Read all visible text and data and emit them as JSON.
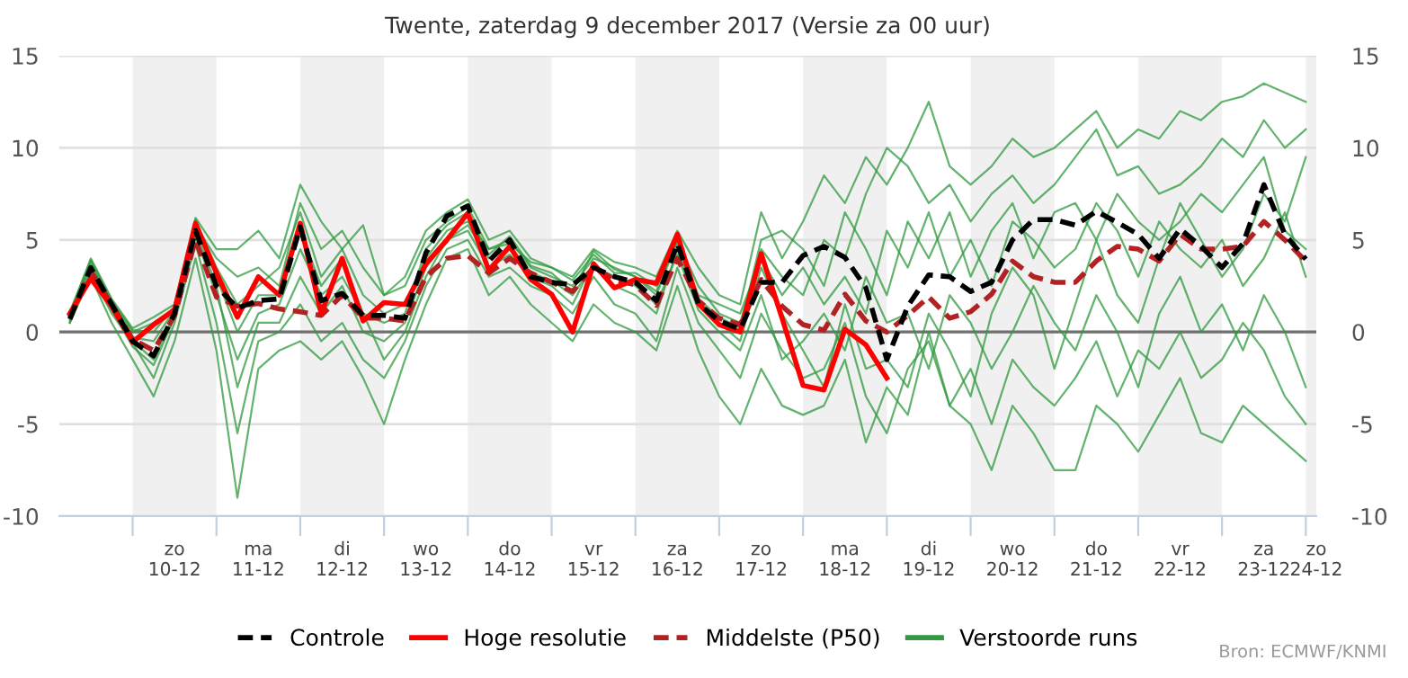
{
  "chart_data": {
    "type": "line",
    "title": "Twente, zaterdag 9 december 2017 (Versie za 00 uur)",
    "annotations": [
      "Bron: ECMWF/KNMI"
    ],
    "x": [
      "2017-12-09T06:00",
      "2017-12-09T12:00",
      "2017-12-09T18:00",
      "2017-12-10T00:00",
      "2017-12-10T06:00",
      "2017-12-10T12:00",
      "2017-12-10T18:00",
      "2017-12-11T00:00",
      "2017-12-11T06:00",
      "2017-12-11T12:00",
      "2017-12-11T18:00",
      "2017-12-12T00:00",
      "2017-12-12T06:00",
      "2017-12-12T12:00",
      "2017-12-12T18:00",
      "2017-12-13T00:00",
      "2017-12-13T06:00",
      "2017-12-13T12:00",
      "2017-12-13T18:00",
      "2017-12-14T00:00",
      "2017-12-14T06:00",
      "2017-12-14T12:00",
      "2017-12-14T18:00",
      "2017-12-15T00:00",
      "2017-12-15T06:00",
      "2017-12-15T12:00",
      "2017-12-15T18:00",
      "2017-12-16T00:00",
      "2017-12-16T06:00",
      "2017-12-16T12:00",
      "2017-12-16T18:00",
      "2017-12-17T00:00",
      "2017-12-17T06:00",
      "2017-12-17T12:00",
      "2017-12-17T18:00",
      "2017-12-18T00:00",
      "2017-12-18T06:00",
      "2017-12-18T12:00",
      "2017-12-18T18:00",
      "2017-12-19T00:00",
      "2017-12-19T06:00",
      "2017-12-19T12:00",
      "2017-12-19T18:00",
      "2017-12-20T00:00",
      "2017-12-20T06:00",
      "2017-12-20T12:00",
      "2017-12-20T18:00",
      "2017-12-21T00:00",
      "2017-12-21T06:00",
      "2017-12-21T12:00",
      "2017-12-21T18:00",
      "2017-12-22T00:00",
      "2017-12-22T06:00",
      "2017-12-22T12:00",
      "2017-12-22T18:00",
      "2017-12-23T00:00",
      "2017-12-23T06:00",
      "2017-12-23T12:00",
      "2017-12-23T18:00",
      "2017-12-24T00:00"
    ],
    "xlim": [
      "2017-12-09T03:00",
      "2017-12-24T03:00"
    ],
    "xticks": [
      {
        "value": "2017-12-10",
        "label": null
      },
      {
        "value": "2017-12-11",
        "label": null
      },
      {
        "value": "2017-12-12",
        "label": null
      },
      {
        "value": "2017-12-13",
        "label": null
      },
      {
        "value": "2017-12-14",
        "label": null
      },
      {
        "value": "2017-12-15",
        "label": null
      },
      {
        "value": "2017-12-16",
        "label": null
      },
      {
        "value": "2017-12-17",
        "label": null
      },
      {
        "value": "2017-12-18",
        "label": null
      },
      {
        "value": "2017-12-19",
        "label": null
      },
      {
        "value": "2017-12-20",
        "label": null
      },
      {
        "value": "2017-12-21",
        "label": null
      },
      {
        "value": "2017-12-22",
        "label": null
      },
      {
        "value": "2017-12-23",
        "label": null
      },
      {
        "value": "2017-12-24",
        "label": null
      },
      {
        "value": "2017-12-10T12:00",
        "label": "zo\n10-12"
      },
      {
        "value": "2017-12-11T12:00",
        "label": "ma\n11-12"
      },
      {
        "value": "2017-12-12T12:00",
        "label": "di\n12-12"
      },
      {
        "value": "2017-12-13T12:00",
        "label": "wo\n13-12"
      },
      {
        "value": "2017-12-14T12:00",
        "label": "do\n14-12"
      },
      {
        "value": "2017-12-15T12:00",
        "label": "vr\n15-12"
      },
      {
        "value": "2017-12-16T12:00",
        "label": "za\n16-12"
      },
      {
        "value": "2017-12-17T12:00",
        "label": "zo\n17-12"
      },
      {
        "value": "2017-12-18T12:00",
        "label": "ma\n18-12"
      },
      {
        "value": "2017-12-19T12:00",
        "label": "di\n19-12"
      },
      {
        "value": "2017-12-20T12:00",
        "label": "wo\n20-12"
      },
      {
        "value": "2017-12-21T12:00",
        "label": "do\n21-12"
      },
      {
        "value": "2017-12-22T12:00",
        "label": "vr\n22-12"
      },
      {
        "value": "2017-12-23T12:00",
        "label": "za\n23-12"
      },
      {
        "value": "2017-12-24T03:00",
        "label": "zo\n24-12"
      }
    ],
    "ylim": [
      -10,
      15
    ],
    "yticks": [
      -10,
      -5,
      0,
      5,
      10,
      15
    ],
    "y2lim": [
      -10,
      15
    ],
    "y2ticks": [
      -10,
      -5,
      0,
      5,
      10,
      15
    ],
    "grid": "y",
    "legend": "bottom",
    "ref_lines": [
      {
        "axis": "y",
        "value": 0,
        "color": "#707070"
      }
    ],
    "bands": [
      {
        "axis": "x",
        "from": "2017-12-10",
        "to": "2017-12-11",
        "color": "#f0f0f0"
      },
      {
        "axis": "x",
        "from": "2017-12-12",
        "to": "2017-12-13",
        "color": "#f0f0f0"
      },
      {
        "axis": "x",
        "from": "2017-12-14",
        "to": "2017-12-15",
        "color": "#f0f0f0"
      },
      {
        "axis": "x",
        "from": "2017-12-16",
        "to": "2017-12-17",
        "color": "#f0f0f0"
      },
      {
        "axis": "x",
        "from": "2017-12-18",
        "to": "2017-12-19",
        "color": "#f0f0f0"
      },
      {
        "axis": "x",
        "from": "2017-12-20",
        "to": "2017-12-21",
        "color": "#f0f0f0"
      },
      {
        "axis": "x",
        "from": "2017-12-22",
        "to": "2017-12-23",
        "color": "#f0f0f0"
      },
      {
        "axis": "x",
        "from": "2017-12-24",
        "to": "2017-12-24T03:00",
        "color": "#f0f0f0"
      }
    ],
    "series": [
      {
        "name": "Controle",
        "color": "#000000",
        "line_style": "dashed",
        "values": [
          0.7,
          3.5,
          1.5,
          -0.5,
          -1.3,
          1.0,
          5.5,
          2.5,
          1.3,
          1.7,
          1.8,
          5.7,
          1.7,
          2.1,
          0.9,
          0.9,
          0.75,
          4.3,
          6.3,
          6.85,
          3.85,
          5.0,
          3.0,
          2.7,
          2.55,
          3.5,
          3.0,
          2.7,
          1.7,
          4.8,
          1.55,
          0.6,
          0.15,
          2.7,
          2.7,
          4.15,
          4.65,
          4.05,
          2.4,
          -1.5,
          1.4,
          3.1,
          3.0,
          2.2,
          2.7,
          5.0,
          6.1,
          6.1,
          5.8,
          6.55,
          5.95,
          5.3,
          4.0,
          5.6,
          4.65,
          3.5,
          4.8,
          8.0,
          5.3,
          3.95
        ]
      },
      {
        "name": "Hoge resolutie",
        "color": "#ff0000",
        "line_style": "solid",
        "values": [
          1.0,
          2.9,
          1.4,
          -0.55,
          0.4,
          1.2,
          5.9,
          3.2,
          0.8,
          3.0,
          2.0,
          5.9,
          1.0,
          4.0,
          0.6,
          1.6,
          1.5,
          3.7,
          5.0,
          6.45,
          3.35,
          4.65,
          2.85,
          2.05,
          0.0,
          3.7,
          2.4,
          2.85,
          2.65,
          5.3,
          1.55,
          0.4,
          0.0,
          4.25,
          0.75,
          -2.9,
          -3.15,
          0.15,
          -0.7,
          -2.5,
          null,
          null,
          null,
          null,
          null,
          null,
          null,
          null,
          null,
          null,
          null,
          null,
          null,
          null,
          null,
          null,
          null,
          null,
          null,
          null
        ]
      },
      {
        "name": "Middelste (P50)",
        "color": "#b22222",
        "line_style": "dashed",
        "values": [
          0.8,
          3.3,
          1.5,
          -0.4,
          -1.0,
          0.9,
          5.0,
          1.9,
          1.4,
          1.55,
          1.25,
          1.1,
          0.9,
          2.0,
          0.75,
          0.75,
          0.6,
          3.0,
          4.0,
          4.15,
          3.2,
          4.0,
          3.2,
          2.7,
          2.2,
          3.5,
          2.85,
          2.55,
          1.45,
          4.0,
          1.7,
          0.75,
          0.4,
          2.85,
          1.4,
          0.4,
          0.1,
          2.05,
          0.6,
          0.0,
          0.9,
          1.9,
          0.75,
          1.1,
          2.05,
          3.85,
          3.0,
          2.7,
          2.7,
          3.85,
          4.65,
          4.5,
          3.85,
          5.3,
          4.5,
          4.5,
          4.65,
          6.0,
          5.0,
          3.85
        ]
      },
      {
        "name": "Verstoorde runs",
        "color": "#2f9a3f",
        "line_style": "solid",
        "values": [
          1.0,
          4.0,
          1.8,
          0.2,
          0.8,
          1.5,
          6.2,
          4.5,
          4.5,
          5.5,
          4.0,
          8.0,
          6.0,
          4.5,
          5.8,
          2.0,
          3.0,
          5.5,
          6.5,
          7.2,
          5.0,
          5.5,
          4.0,
          3.5,
          3.0,
          4.5,
          3.8,
          3.5,
          3.0,
          5.5,
          3.5,
          2.0,
          1.5,
          6.5,
          4.0,
          6.0,
          8.5,
          7.0,
          9.5,
          8.0,
          10.0,
          12.5,
          9.0,
          8.0,
          9.0,
          10.5,
          9.5,
          10.0,
          11.0,
          12.0,
          10.0,
          11.0,
          10.5,
          12.0,
          11.5,
          12.5,
          12.8,
          13.5,
          13.0,
          12.5
        ]
      },
      {
        "color": "#2f9a3f",
        "line_style": "solid",
        "values": [
          0.5,
          3.0,
          0.5,
          -1.5,
          -3.5,
          -0.5,
          4.0,
          -1.0,
          -9.0,
          -2.0,
          -1.0,
          -0.5,
          -1.5,
          -0.5,
          -2.5,
          -5.0,
          -1.5,
          1.5,
          4.0,
          4.5,
          2.0,
          3.0,
          1.5,
          0.5,
          -0.5,
          1.5,
          0.5,
          0.0,
          -1.0,
          2.5,
          -1.0,
          -3.5,
          -5.0,
          -2.0,
          -4.0,
          -4.5,
          -4.0,
          -1.5,
          -6.0,
          -3.0,
          -4.5,
          0.0,
          -4.0,
          -5.0,
          -7.5,
          -4.0,
          -5.5,
          -7.5,
          -7.5,
          -4.0,
          -5.0,
          -6.5,
          -4.5,
          -2.5,
          -5.5,
          -6.0,
          -4.0,
          -5.0,
          -6.0,
          -7.0
        ]
      },
      {
        "color": "#2f9a3f",
        "line_style": "solid",
        "values": [
          0.7,
          3.5,
          1.2,
          -0.8,
          -1.8,
          0.8,
          5.5,
          2.5,
          -3.0,
          0.5,
          0.5,
          3.0,
          1.0,
          2.5,
          0.0,
          -0.5,
          0.5,
          3.5,
          5.0,
          5.5,
          3.5,
          4.2,
          3.0,
          2.5,
          1.5,
          3.8,
          2.5,
          2.0,
          1.0,
          4.5,
          1.5,
          0.5,
          -0.5,
          3.5,
          1.0,
          -1.0,
          -3.0,
          1.5,
          -2.0,
          -1.5,
          -3.0,
          1.0,
          -1.0,
          -3.5,
          1.0,
          3.5,
          2.0,
          -2.0,
          1.5,
          5.0,
          2.0,
          0.5,
          4.0,
          7.0,
          5.0,
          3.0,
          4.5,
          7.5,
          6.0,
          9.5
        ]
      },
      {
        "color": "#2f9a3f",
        "line_style": "solid",
        "values": [
          0.8,
          3.8,
          1.5,
          -0.3,
          -0.5,
          1.2,
          6.0,
          3.5,
          1.5,
          2.5,
          3.5,
          6.5,
          3.0,
          4.5,
          2.0,
          1.0,
          1.5,
          4.0,
          5.5,
          6.0,
          4.5,
          5.0,
          3.5,
          3.0,
          2.5,
          4.0,
          3.5,
          3.0,
          2.0,
          5.0,
          2.5,
          1.0,
          0.5,
          4.5,
          3.0,
          2.0,
          5.0,
          4.0,
          7.5,
          10.0,
          9.0,
          7.0,
          8.0,
          6.0,
          7.5,
          8.5,
          7.0,
          8.0,
          9.5,
          11.0,
          8.5,
          9.0,
          7.5,
          8.0,
          9.0,
          10.5,
          9.5,
          11.5,
          10.0,
          11.0
        ]
      },
      {
        "color": "#2f9a3f",
        "line_style": "solid",
        "values": [
          0.6,
          3.2,
          1.0,
          -0.6,
          -2.5,
          0.5,
          4.8,
          0.5,
          -5.5,
          -0.5,
          0.0,
          1.5,
          -0.5,
          0.5,
          -1.5,
          -2.5,
          -0.5,
          2.5,
          4.5,
          5.0,
          3.0,
          3.5,
          2.5,
          2.0,
          1.0,
          3.0,
          1.5,
          1.0,
          -0.5,
          3.5,
          0.5,
          -1.0,
          -2.5,
          1.0,
          -1.0,
          -2.5,
          -2.0,
          0.5,
          -3.5,
          -5.5,
          -2.0,
          -0.5,
          -4.0,
          -2.0,
          -5.0,
          -1.5,
          -3.0,
          -4.0,
          -2.5,
          -0.5,
          -3.5,
          -1.0,
          -2.0,
          0.0,
          -2.5,
          -1.5,
          0.5,
          -1.0,
          -3.5,
          -5.0
        ]
      },
      {
        "color": "#2f9a3f",
        "line_style": "solid",
        "values": [
          0.9,
          3.6,
          1.6,
          0.0,
          0.5,
          1.3,
          5.8,
          4.0,
          3.0,
          3.5,
          2.5,
          7.0,
          4.5,
          5.5,
          3.5,
          2.0,
          2.5,
          5.0,
          6.0,
          6.8,
          4.5,
          4.8,
          3.8,
          3.5,
          2.8,
          4.2,
          3.2,
          3.2,
          2.5,
          4.8,
          2.0,
          1.5,
          1.0,
          4.0,
          2.0,
          3.5,
          1.5,
          3.0,
          1.0,
          5.5,
          3.5,
          6.5,
          3.0,
          5.0,
          2.5,
          6.0,
          5.0,
          3.5,
          4.5,
          7.0,
          5.5,
          3.0,
          6.0,
          4.5,
          3.5,
          5.0,
          2.5,
          4.0,
          6.5,
          3.0
        ]
      },
      {
        "color": "#2f9a3f",
        "line_style": "solid",
        "values": [
          0.5,
          3.3,
          1.3,
          -0.5,
          -1.5,
          1.0,
          5.2,
          2.0,
          -1.5,
          1.0,
          1.5,
          4.5,
          2.0,
          3.0,
          1.0,
          -1.5,
          0.0,
          3.0,
          5.0,
          5.8,
          4.0,
          4.5,
          3.2,
          2.8,
          2.0,
          3.6,
          3.0,
          2.5,
          1.5,
          4.2,
          1.2,
          0.0,
          -1.0,
          2.0,
          -1.5,
          -0.5,
          1.0,
          -1.0,
          3.0,
          0.5,
          1.0,
          -2.0,
          2.0,
          0.5,
          -2.0,
          0.0,
          2.5,
          0.5,
          -1.0,
          2.0,
          0.0,
          -3.0,
          1.0,
          3.0,
          0.0,
          1.5,
          -1.0,
          2.0,
          0.0,
          -3.0
        ]
      },
      {
        "color": "#2f9a3f",
        "line_style": "solid",
        "values": [
          1.1,
          3.9,
          1.7,
          0.1,
          0.0,
          1.4,
          6.1,
          3.0,
          0.0,
          2.0,
          2.0,
          5.5,
          2.5,
          4.0,
          1.0,
          0.5,
          1.0,
          4.5,
          5.8,
          6.5,
          4.2,
          5.2,
          3.6,
          3.2,
          2.2,
          4.4,
          3.4,
          3.0,
          2.2,
          5.2,
          1.8,
          0.8,
          0.2,
          5.0,
          5.5,
          4.5,
          2.5,
          6.5,
          4.5,
          2.0,
          6.0,
          4.0,
          6.5,
          3.0,
          5.5,
          7.0,
          4.0,
          6.5,
          7.0,
          5.0,
          7.5,
          6.0,
          5.0,
          6.0,
          7.5,
          6.5,
          8.0,
          9.5,
          5.5,
          4.5
        ]
      }
    ]
  }
}
